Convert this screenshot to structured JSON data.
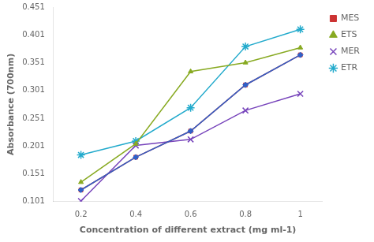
{
  "chart_data": {
    "type": "line",
    "x": [
      0.2,
      0.4,
      0.6,
      0.8,
      1.0
    ],
    "series": [
      {
        "color": "#3060c8",
        "marker": "diamond",
        "values": [
          0.122,
          0.181,
          0.228,
          0.311,
          0.365
        ]
      },
      {
        "name": "MES",
        "color": "#cc3333",
        "marker": "square",
        "values": [
          0.122,
          0.181,
          0.228,
          0.311,
          0.365
        ]
      },
      {
        "name": "ETS",
        "color": "#88aa22",
        "marker": "triangle",
        "values": [
          0.136,
          0.205,
          0.335,
          0.351,
          0.378
        ]
      },
      {
        "name": "MER",
        "color": "#7744bb",
        "marker": "x",
        "values": [
          0.102,
          0.202,
          0.213,
          0.265,
          0.295
        ]
      },
      {
        "name": "ETR",
        "color": "#22aacc",
        "marker": "star",
        "values": [
          0.185,
          0.21,
          0.27,
          0.38,
          0.411
        ]
      }
    ],
    "xlabel": "Concentration of different extract (mg ml-1)",
    "ylabel": "Absorbance (700nm)",
    "xlim": [
      0.1,
      1.08
    ],
    "ylim": [
      0.101,
      0.451
    ],
    "xticks": [
      0.2,
      0.4,
      0.6,
      0.8,
      1
    ],
    "yticks": [
      0.101,
      0.151,
      0.201,
      0.251,
      0.301,
      0.351,
      0.401,
      0.451
    ],
    "grid": false,
    "legend": "right"
  }
}
